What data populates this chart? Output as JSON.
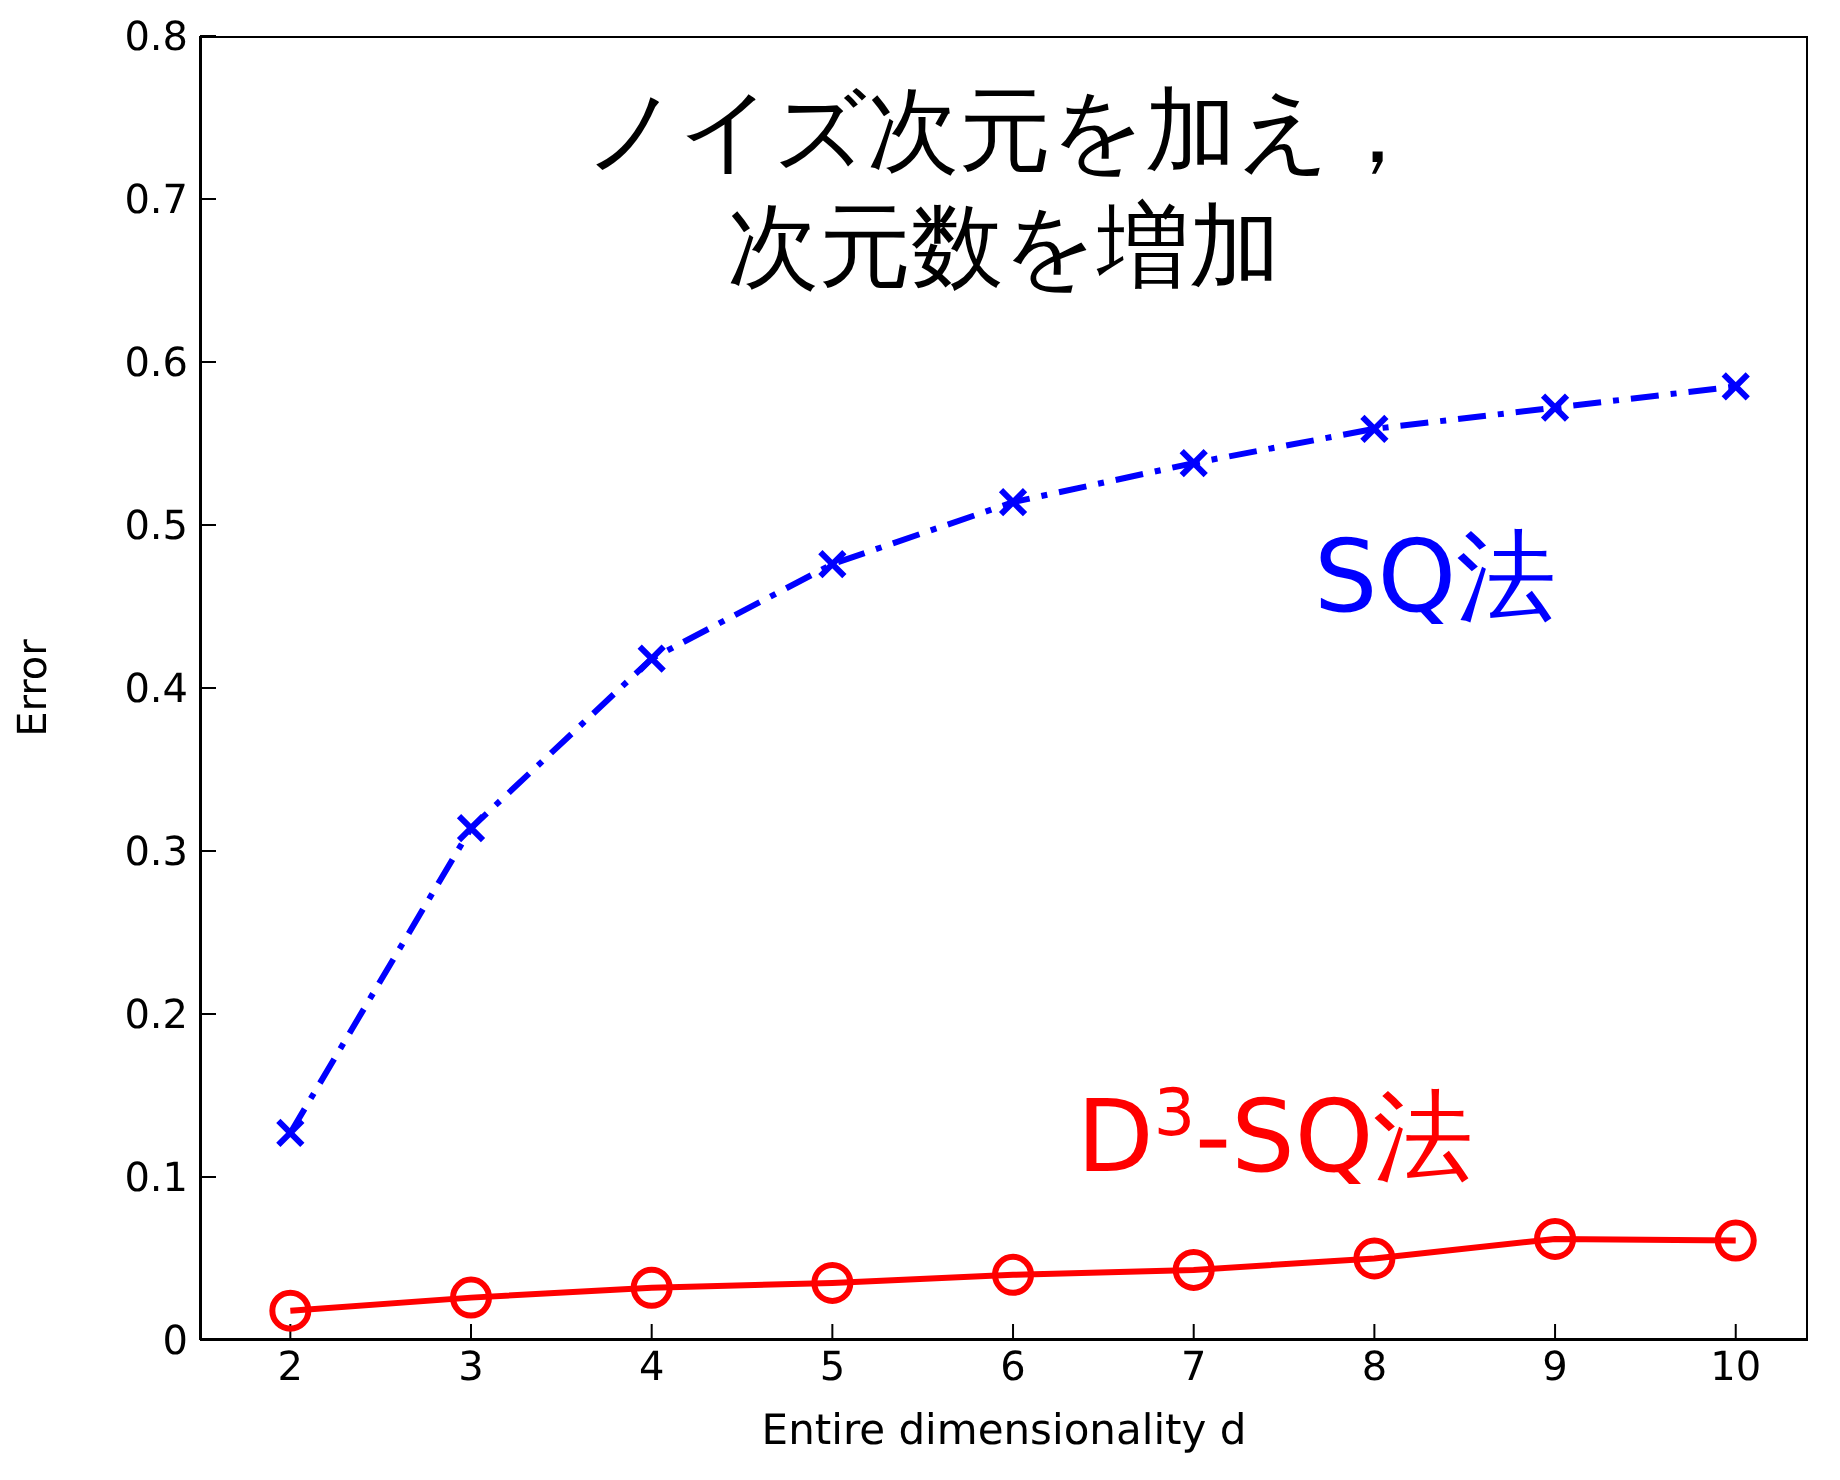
{
  "chart_data": {
    "type": "line",
    "title": "ノイズ次元を加え，次元数を増加",
    "xlabel": "Entire dimensionality d",
    "ylabel": "Error",
    "x": [
      2,
      3,
      4,
      5,
      6,
      7,
      8,
      9,
      10
    ],
    "series": [
      {
        "name": "SQ法",
        "color": "#0000ff",
        "values": [
          0.127,
          0.314,
          0.418,
          0.476,
          0.514,
          0.538,
          0.559,
          0.572,
          0.585
        ],
        "marker": "cross",
        "line_style": "dashdot"
      },
      {
        "name": "D$^{3}$-SQ法",
        "color": "#ff0000",
        "values": [
          0.018,
          0.026,
          0.032,
          0.035,
          0.04,
          0.043,
          0.05,
          0.062,
          0.061
        ],
        "marker": "circle",
        "line_style": "solid"
      }
    ],
    "xlim": [
      1.5,
      10.4
    ],
    "xticks": [
      2,
      3,
      4,
      5,
      6,
      7,
      8,
      9,
      10
    ],
    "ylim": [
      0,
      0.8
    ],
    "yticks": [
      0,
      0.1,
      0.2,
      0.3,
      0.4,
      0.5,
      0.6,
      0.7,
      0.8
    ],
    "grid": false,
    "legend": false
  }
}
